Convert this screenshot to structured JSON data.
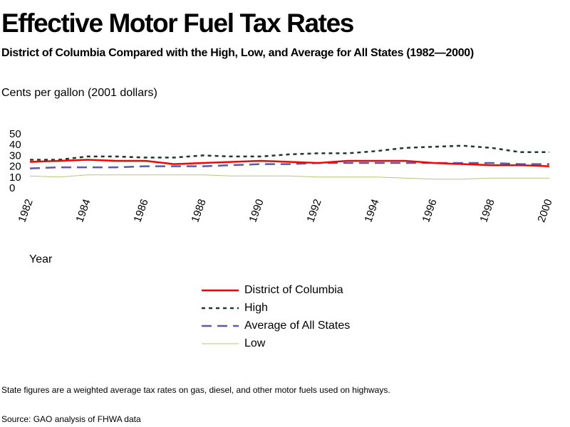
{
  "header": {
    "title": "Effective Motor Fuel Tax Rates",
    "subtitle": "District of Columbia Compared with the High, Low, and Average for All States (1982—2000)"
  },
  "chart_data": {
    "type": "line",
    "ylabel": "Cents per gallon (2001 dollars)",
    "xlabel": "Year",
    "ylim": [
      0,
      50
    ],
    "xlim": [
      1982,
      2000
    ],
    "yticks": [
      "0",
      "10",
      "20",
      "30",
      "40",
      "50"
    ],
    "xticks": [
      "1982",
      "1984",
      "1986",
      "1988",
      "1990",
      "1992",
      "1994",
      "1996",
      "1998",
      "2000"
    ],
    "grid": false,
    "legend_position": "bottom-center",
    "x": [
      1982,
      1983,
      1984,
      1985,
      1986,
      1987,
      1988,
      1989,
      1990,
      1991,
      1992,
      1993,
      1994,
      1995,
      1996,
      1997,
      1998,
      1999,
      2000
    ],
    "series": [
      {
        "name": "District of Columbia",
        "style": "solid",
        "color": "#ff0000",
        "values": [
          24,
          25,
          26,
          25,
          25,
          22,
          23,
          24,
          25,
          24,
          23,
          25,
          25,
          25,
          23,
          22,
          21,
          21,
          20
        ]
      },
      {
        "name": "High",
        "style": "dotted",
        "color": "#1a3a2a",
        "values": [
          26,
          26,
          29,
          29,
          28,
          28,
          30,
          29,
          29,
          31,
          32,
          32,
          34,
          37,
          38,
          39,
          37,
          33,
          33
        ]
      },
      {
        "name": "Average of All States",
        "style": "dashed",
        "color": "#5a5aa8",
        "values": [
          18,
          19,
          19,
          19,
          20,
          20,
          20,
          21,
          22,
          22,
          23,
          23,
          23,
          23,
          23,
          23,
          23,
          22,
          22
        ]
      },
      {
        "name": "Low",
        "style": "thin",
        "color": "#b4c878",
        "values": [
          11,
          10,
          12,
          12,
          12,
          12,
          12,
          11,
          11,
          11,
          10,
          10,
          10,
          9,
          8,
          8,
          9,
          9,
          9
        ]
      }
    ]
  },
  "footer": {
    "note": "State figures are a weighted average tax rates on gas, diesel, and other motor fuels used on highways.",
    "source": "Source: GAO analysis of FHWA data"
  }
}
